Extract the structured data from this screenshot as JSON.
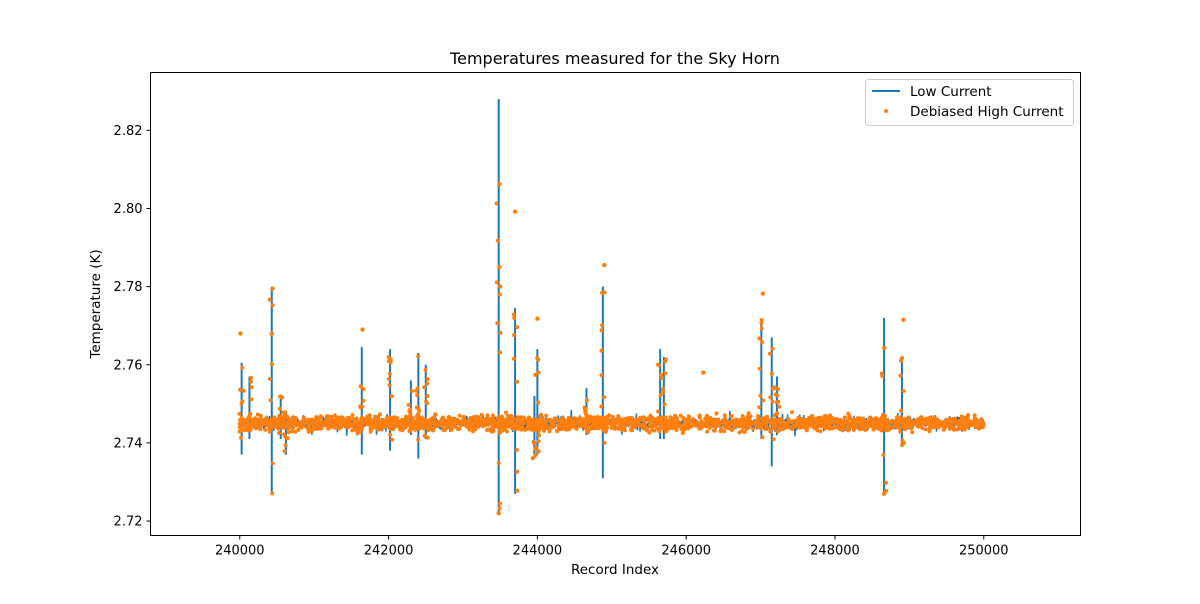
{
  "chart_data": {
    "type": "line",
    "title": "Temperatures measured for the Sky Horn",
    "xlabel": "Record Index",
    "ylabel": "Temperature (K)",
    "xlim": [
      238800,
      251300
    ],
    "ylim": [
      2.7163,
      2.8348
    ],
    "xticks": [
      240000,
      242000,
      244000,
      246000,
      248000,
      250000
    ],
    "xtick_labels": [
      "240000",
      "242000",
      "244000",
      "246000",
      "248000",
      "250000"
    ],
    "yticks": [
      2.72,
      2.74,
      2.76,
      2.78,
      2.8,
      2.82
    ],
    "ytick_labels": [
      "2.72",
      "2.74",
      "2.76",
      "2.78",
      "2.80",
      "2.82"
    ],
    "grid": false,
    "legend_position": "top-right",
    "baseline_level": 2.745,
    "series": [
      {
        "name": "Low Current",
        "kind": "line",
        "color": "#1f77b4",
        "x_range": [
          240000,
          250000
        ],
        "spikes": [
          {
            "x": 240025,
            "min": 2.737,
            "max": 2.7605
          },
          {
            "x": 240130,
            "min": 2.741,
            "max": 2.757
          },
          {
            "x": 240430,
            "min": 2.727,
            "max": 2.78
          },
          {
            "x": 240550,
            "min": 2.741,
            "max": 2.752
          },
          {
            "x": 240620,
            "min": 2.737,
            "max": 2.748
          },
          {
            "x": 241640,
            "min": 2.737,
            "max": 2.7645
          },
          {
            "x": 242020,
            "min": 2.738,
            "max": 2.764
          },
          {
            "x": 242300,
            "min": 2.742,
            "max": 2.756
          },
          {
            "x": 242400,
            "min": 2.736,
            "max": 2.763
          },
          {
            "x": 242500,
            "min": 2.741,
            "max": 2.76
          },
          {
            "x": 243480,
            "min": 2.722,
            "max": 2.828
          },
          {
            "x": 243700,
            "min": 2.727,
            "max": 2.7745
          },
          {
            "x": 243960,
            "min": 2.736,
            "max": 2.752
          },
          {
            "x": 244000,
            "min": 2.737,
            "max": 2.764
          },
          {
            "x": 244660,
            "min": 2.742,
            "max": 2.754
          },
          {
            "x": 244880,
            "min": 2.731,
            "max": 2.78
          },
          {
            "x": 245650,
            "min": 2.741,
            "max": 2.764
          },
          {
            "x": 245700,
            "min": 2.741,
            "max": 2.762
          },
          {
            "x": 247010,
            "min": 2.741,
            "max": 2.7715
          },
          {
            "x": 247150,
            "min": 2.734,
            "max": 2.767
          },
          {
            "x": 247220,
            "min": 2.742,
            "max": 2.757
          },
          {
            "x": 248660,
            "min": 2.727,
            "max": 2.772
          },
          {
            "x": 248900,
            "min": 2.739,
            "max": 2.762
          }
        ]
      },
      {
        "name": "Debiased High Current",
        "kind": "scatter",
        "color": "#ff7f0e",
        "x_range": [
          240000,
          250000
        ],
        "outliers": [
          {
            "x": 240010,
            "y": 2.768
          },
          {
            "x": 240440,
            "y": 2.7795
          },
          {
            "x": 240430,
            "y": 2.768
          },
          {
            "x": 241650,
            "y": 2.769
          },
          {
            "x": 243490,
            "y": 2.8062
          },
          {
            "x": 243490,
            "y": 2.785
          },
          {
            "x": 243500,
            "y": 2.78
          },
          {
            "x": 243700,
            "y": 2.7992
          },
          {
            "x": 244000,
            "y": 2.7718
          },
          {
            "x": 244900,
            "y": 2.7855
          },
          {
            "x": 246230,
            "y": 2.758
          },
          {
            "x": 247030,
            "y": 2.7782
          },
          {
            "x": 248920,
            "y": 2.7715
          },
          {
            "x": 243480,
            "y": 2.722
          },
          {
            "x": 248660,
            "y": 2.727
          }
        ]
      }
    ]
  }
}
